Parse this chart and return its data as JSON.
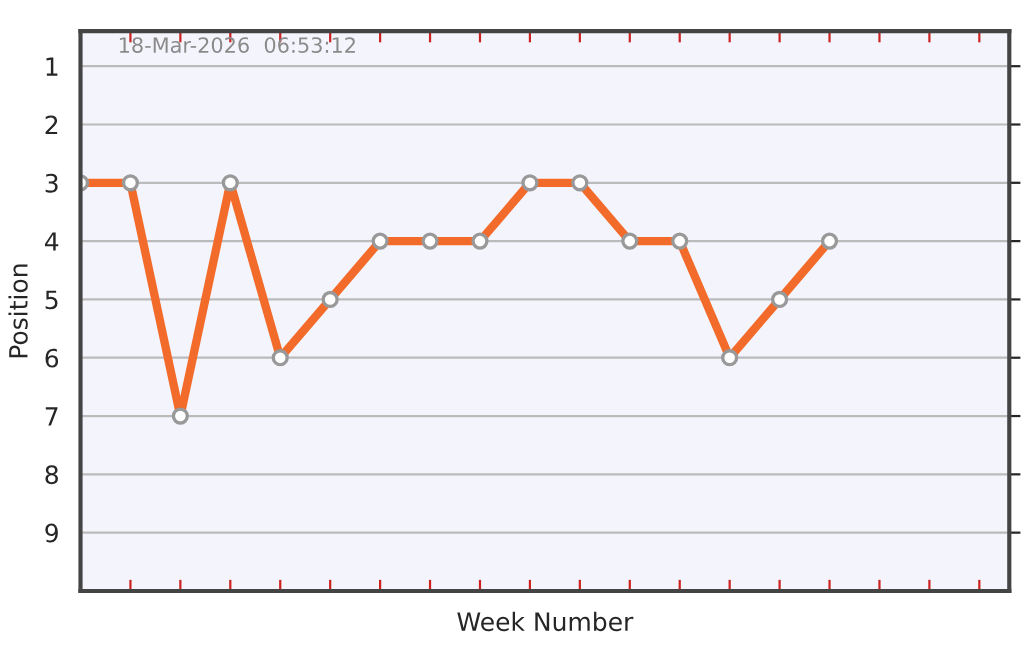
{
  "chart_data": {
    "type": "line",
    "xlabel": "Week Number",
    "ylabel": "Position",
    "categories": [
      null,
      null,
      null,
      null,
      null,
      null,
      null,
      null,
      null,
      null,
      null,
      null,
      null,
      null,
      null,
      null,
      null,
      null,
      null
    ],
    "series": [
      {
        "color": "#f26b2a",
        "values": [
          3,
          3,
          7,
          3,
          6,
          5,
          4,
          4,
          4,
          3,
          3,
          4,
          4,
          6,
          5,
          4,
          null,
          null,
          null
        ]
      }
    ],
    "ylim": [
      10,
      0.4
    ],
    "yticks": [
      1,
      2,
      3,
      4,
      5,
      6,
      7,
      8,
      9
    ],
    "grid": "y",
    "marker": "circle",
    "line_style": "solid",
    "legend": false,
    "annotations": [
      "18-Mar-2026  06:53:12"
    ]
  }
}
